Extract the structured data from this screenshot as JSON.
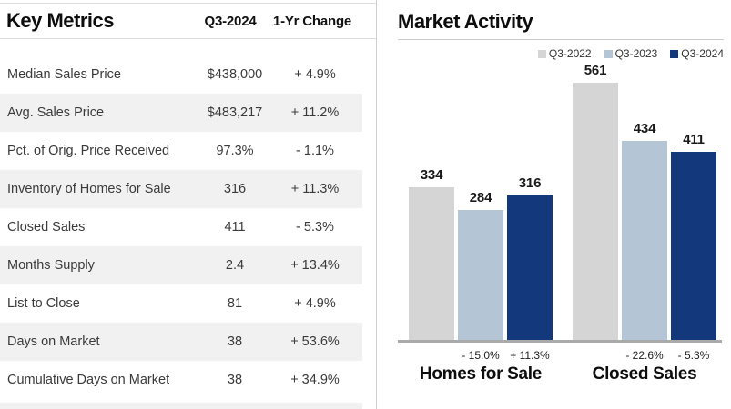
{
  "left_panel": {
    "title": "Key Metrics",
    "columns": {
      "period": "Q3-2024",
      "change": "1-Yr Change"
    },
    "rows": [
      {
        "label": "Median Sales Price",
        "value": "$438,000",
        "change": "+ 4.9%"
      },
      {
        "label": "Avg. Sales Price",
        "value": "$483,217",
        "change": "+ 11.2%"
      },
      {
        "label": "Pct. of Orig. Price Received",
        "value": "97.3%",
        "change": "- 1.1%"
      },
      {
        "label": "Inventory of Homes for Sale",
        "value": "316",
        "change": "+ 11.3%"
      },
      {
        "label": "Closed Sales",
        "value": "411",
        "change": "- 5.3%"
      },
      {
        "label": "Months Supply",
        "value": "2.4",
        "change": "+ 13.4%"
      },
      {
        "label": "List to Close",
        "value": "81",
        "change": "+ 4.9%"
      },
      {
        "label": "Days on Market",
        "value": "38",
        "change": "+ 53.6%"
      },
      {
        "label": "Cumulative Days on Market",
        "value": "38",
        "change": "+ 34.9%"
      }
    ]
  },
  "chart_data": {
    "type": "bar",
    "title": "Market Activity",
    "categories": [
      "Homes for Sale",
      "Closed Sales"
    ],
    "series": [
      {
        "name": "Q3-2022",
        "color": "#d5d5d5",
        "values": [
          334,
          561
        ]
      },
      {
        "name": "Q3-2023",
        "color": "#b4c5d6",
        "values": [
          284,
          434
        ]
      },
      {
        "name": "Q3-2024",
        "color": "#14387c",
        "values": [
          316,
          411
        ]
      }
    ],
    "change_labels": [
      [
        "",
        "- 15.0%",
        "+ 11.3%"
      ],
      [
        "",
        "- 22.6%",
        "- 5.3%"
      ]
    ],
    "ylim": [
      0,
      561
    ],
    "xlabel": "",
    "ylabel": "",
    "value_labels": true,
    "legend_position": "top-right",
    "grid": false
  }
}
